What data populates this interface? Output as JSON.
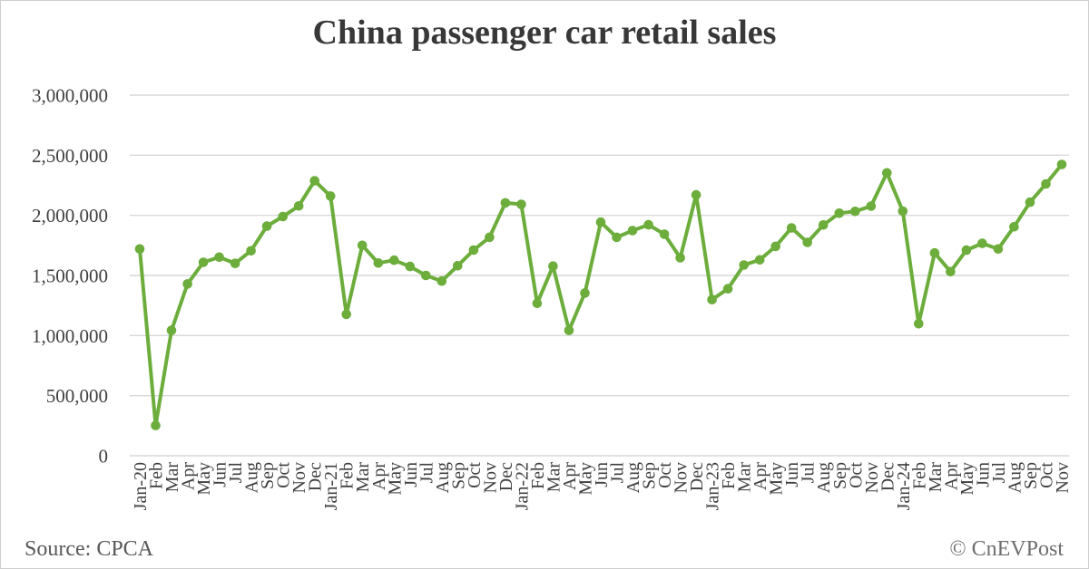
{
  "title": "China passenger car retail sales",
  "footer": {
    "source": "Source: CPCA",
    "copyright": "© CnEVPost"
  },
  "colors": {
    "series": "#6CAD3C",
    "gridline": "#D9D9D9",
    "axis_text": "#404040",
    "title_text": "#383838"
  },
  "chart_data": {
    "type": "line",
    "title": "China passenger car retail sales",
    "xlabel": "",
    "ylabel": "",
    "ylim": [
      0,
      3000000
    ],
    "grid": true,
    "legend_position": "none",
    "marker": "circle",
    "y_ticks": [
      0,
      500000,
      1000000,
      1500000,
      2000000,
      2500000,
      3000000
    ],
    "categories": [
      "Jan-20",
      "Feb",
      "Mar",
      "Apr",
      "May",
      "Jun",
      "Jul",
      "Aug",
      "Sep",
      "Oct",
      "Nov",
      "Dec",
      "Jan-21",
      "Feb",
      "Mar",
      "Apr",
      "May",
      "Jun",
      "Jul",
      "Aug",
      "Sep",
      "Oct",
      "Nov",
      "Dec",
      "Jan-22",
      "Feb",
      "Mar",
      "Apr",
      "May",
      "Jun",
      "Jul",
      "Aug",
      "Sep",
      "Oct",
      "Nov",
      "Dec",
      "Jan-23",
      "Feb",
      "Mar",
      "Apr",
      "May",
      "Jun",
      "Jul",
      "Aug",
      "Sep",
      "Oct",
      "Nov",
      "Dec",
      "Jan-24",
      "Feb",
      "Mar",
      "Apr",
      "May",
      "Jun",
      "Jul",
      "Aug",
      "Sep",
      "Oct",
      "Nov"
    ],
    "series": [
      {
        "name": "China passenger car retail sales",
        "values": [
          1720000,
          252000,
          1043000,
          1429000,
          1609000,
          1652000,
          1600000,
          1705000,
          1910000,
          1990000,
          2078000,
          2288000,
          2160000,
          1177000,
          1750000,
          1603000,
          1627000,
          1575000,
          1500000,
          1453000,
          1581000,
          1711000,
          1817000,
          2104000,
          2092000,
          1268000,
          1578000,
          1043000,
          1354000,
          1943000,
          1817000,
          1873000,
          1921000,
          1843000,
          1647000,
          2170000,
          1299000,
          1389000,
          1587000,
          1630000,
          1742000,
          1896000,
          1775000,
          1920000,
          2018000,
          2033000,
          2077000,
          2353000,
          2035000,
          1098000,
          1687000,
          1532000,
          1710000,
          1767000,
          1720000,
          1905000,
          2109000,
          2261000,
          2423000
        ]
      }
    ]
  }
}
